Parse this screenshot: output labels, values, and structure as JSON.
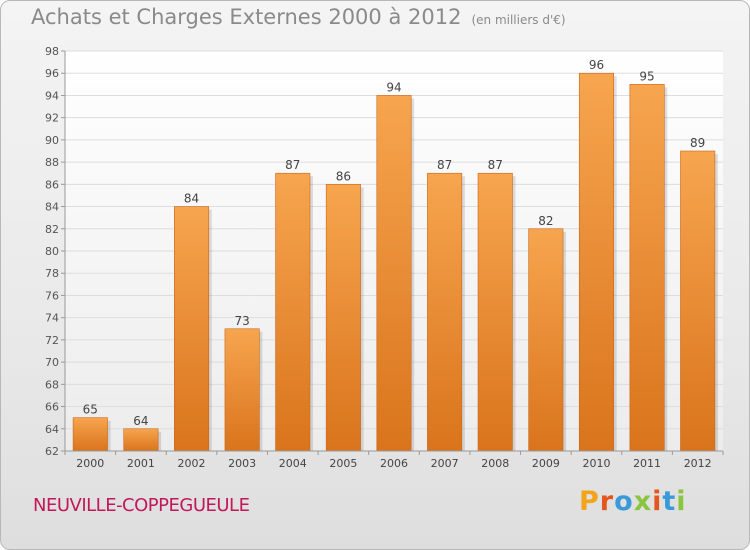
{
  "header": {
    "title": "Achats et Charges Externes 2000 à 2012",
    "unit": "(en milliers d'€)"
  },
  "footer": {
    "place": "NEUVILLE-COPPEGUEULE",
    "logo": [
      "P",
      "r",
      "o",
      "x",
      "i",
      "t",
      "i"
    ],
    "logo_colors": [
      "#f2a51a",
      "#e4561b",
      "#3a9ad9",
      "#8bc53f",
      "#e4561b",
      "#3a9ad9",
      "#8bc53f"
    ]
  },
  "chart_data": {
    "type": "bar",
    "categories": [
      "2000",
      "2001",
      "2002",
      "2003",
      "2004",
      "2005",
      "2006",
      "2007",
      "2008",
      "2009",
      "2010",
      "2011",
      "2012"
    ],
    "values": [
      65,
      64,
      84,
      73,
      87,
      86,
      94,
      87,
      87,
      82,
      96,
      95,
      89
    ],
    "ylim": [
      62,
      98
    ],
    "yticks": [
      62,
      64,
      66,
      68,
      70,
      72,
      74,
      76,
      78,
      80,
      82,
      84,
      86,
      88,
      90,
      92,
      94,
      96,
      98
    ],
    "grid": true,
    "bar_color_top": "#f7a54f",
    "bar_color_bottom": "#d9741c"
  }
}
